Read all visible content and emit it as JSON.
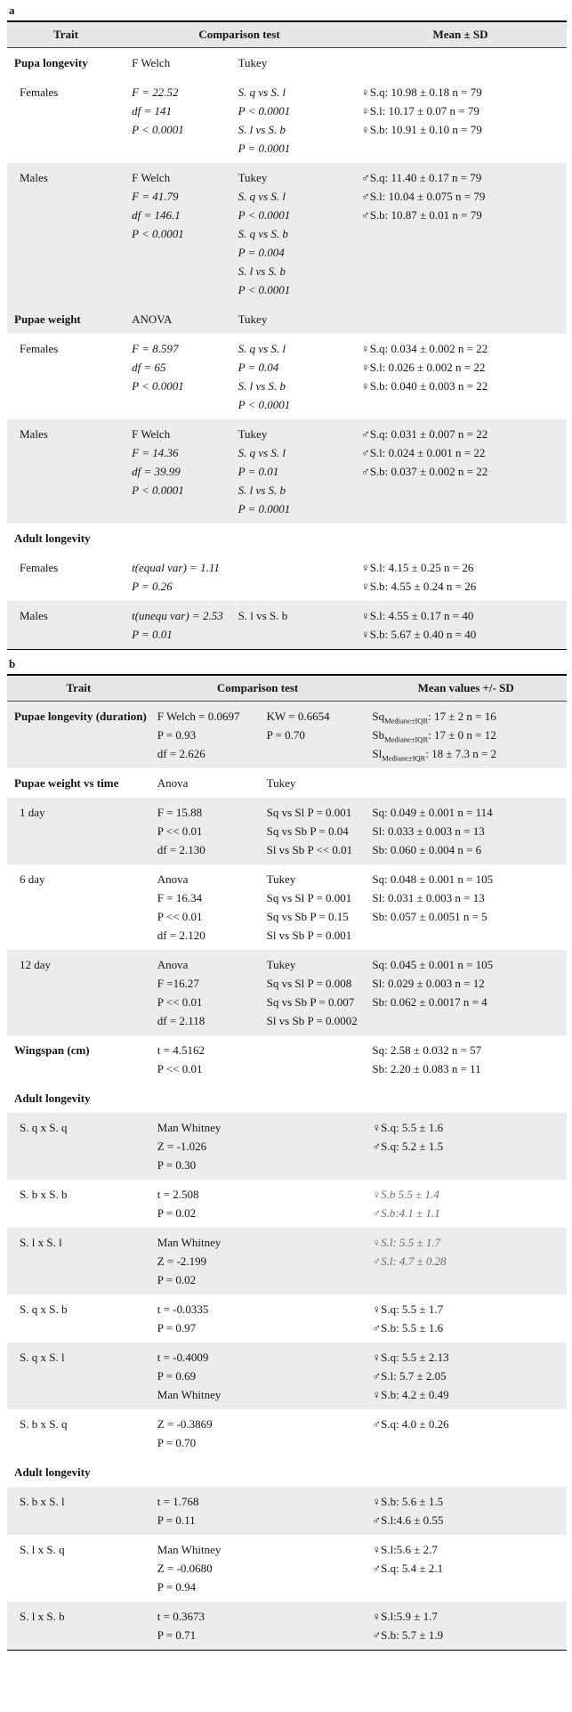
{
  "page": {
    "label_a": "a",
    "label_b": "b"
  },
  "table_a": {
    "headers": {
      "trait": "Trait",
      "comparison": "Comparison test",
      "mean": "Mean ± SD"
    },
    "groups": [
      {
        "trait": "Pupa longevity",
        "bold": true,
        "shaded": false,
        "test1": [
          {
            "t": "F Welch"
          }
        ],
        "test2": [
          {
            "t": "Tukey"
          }
        ],
        "mean": []
      },
      {
        "trait": "Females",
        "bold": false,
        "shaded": false,
        "test1": [
          {
            "t": "F = 22.52",
            "i": true
          },
          {
            "t": "df = 141",
            "i": true
          },
          {
            "t": "P < 0.0001",
            "i": true
          }
        ],
        "test2": [
          {
            "t": "S. q vs S. l",
            "i": true
          },
          {
            "t": "P < 0.0001",
            "i": true
          },
          {
            "t": "S. l vs S. b",
            "i": true
          },
          {
            "t": "P = 0.0001",
            "i": true
          }
        ],
        "mean": [
          {
            "t": "♀S.q: 10.98 ± 0.18 n = 79"
          },
          {
            "t": "♀S.l: 10.17 ± 0.07 n = 79"
          },
          {
            "t": "♀S.b: 10.91 ± 0.10 n = 79"
          }
        ]
      },
      {
        "trait": "Males",
        "bold": false,
        "shaded": true,
        "test1": [
          {
            "t": "F Welch"
          },
          {
            "t": "F = 41.79",
            "i": true
          },
          {
            "t": "df = 146.1",
            "i": true
          },
          {
            "t": "P < 0.0001",
            "i": true
          }
        ],
        "test2": [
          {
            "t": "Tukey"
          },
          {
            "t": "S. q vs S. l",
            "i": true
          },
          {
            "t": "P < 0.0001",
            "i": true
          },
          {
            "t": "S. q vs S. b",
            "i": true
          },
          {
            "t": "P = 0.004",
            "i": true
          },
          {
            "t": "S. l vs S. b",
            "i": true
          },
          {
            "t": "P < 0.0001",
            "i": true
          }
        ],
        "mean": [
          {
            "t": "♂S.q: 11.40 ± 0.17 n = 79"
          },
          {
            "t": "♂S.l: 10.04 ± 0.075 n = 79"
          },
          {
            "t": "♂S.b: 10.87 ± 0.01 n = 79"
          }
        ]
      },
      {
        "trait": "Pupae weight",
        "bold": true,
        "shaded": true,
        "test1": [
          {
            "t": "ANOVA"
          }
        ],
        "test2": [
          {
            "t": "Tukey"
          }
        ],
        "mean": []
      },
      {
        "trait": "Females",
        "bold": false,
        "shaded": false,
        "test1": [
          {
            "t": "F = 8.597",
            "i": true
          },
          {
            "t": "df = 65",
            "i": true
          },
          {
            "t": "P < 0.0001",
            "i": true
          }
        ],
        "test2": [
          {
            "t": "S. q vs S. l",
            "i": true
          },
          {
            "t": "P = 0.04",
            "i": true
          },
          {
            "t": "S. l vs S. b",
            "i": true
          },
          {
            "t": "P < 0.0001",
            "i": true
          }
        ],
        "mean": [
          {
            "t": "♀S.q: 0.034 ± 0.002 n = 22"
          },
          {
            "t": "♀S.l: 0.026 ± 0.002 n = 22"
          },
          {
            "t": "♀S.b: 0.040 ± 0.003 n = 22"
          }
        ]
      },
      {
        "trait": "Males",
        "bold": false,
        "shaded": true,
        "test1": [
          {
            "t": "F Welch"
          },
          {
            "t": "F = 14.36",
            "i": true
          },
          {
            "t": "df = 39.99",
            "i": true
          },
          {
            "t": "P < 0.0001",
            "i": true
          }
        ],
        "test2": [
          {
            "t": "Tukey"
          },
          {
            "t": "S. q vs S. l",
            "i": true
          },
          {
            "t": "P = 0.01",
            "i": true
          },
          {
            "t": "S. l vs S. b",
            "i": true
          },
          {
            "t": "P = 0.0001",
            "i": true
          }
        ],
        "mean": [
          {
            "t": "♂S.q: 0.031 ± 0.007 n = 22"
          },
          {
            "t": "♂S.l: 0.024 ± 0.001 n = 22"
          },
          {
            "t": "♂S.b: 0.037 ± 0.002 n = 22"
          }
        ]
      },
      {
        "trait": "Adult longevity",
        "bold": true,
        "shaded": false,
        "test1": [],
        "test2": [],
        "mean": []
      },
      {
        "trait": "Females",
        "bold": false,
        "shaded": false,
        "test1": [
          {
            "t": "t(equal var) = 1.11",
            "i": true
          },
          {
            "t": "P = 0.26",
            "i": true
          }
        ],
        "test2": [],
        "mean": [
          {
            "t": "♀S.l: 4.15 ± 0.25 n = 26"
          },
          {
            "t": "♀S.b: 4.55 ± 0.24 n = 26"
          }
        ]
      },
      {
        "trait": "Males",
        "bold": false,
        "shaded": true,
        "test1": [
          {
            "t": "t(unequ var) = 2.53",
            "i": true
          },
          {
            "t": "P = 0.01",
            "i": true
          }
        ],
        "test2": [
          {
            "t": "S. l vs S. b"
          }
        ],
        "mean": [
          {
            "t": "♀S.l: 4.55 ± 0.17 n = 40"
          },
          {
            "t": "♀S.b: 5.67 ± 0.40 n = 40"
          }
        ]
      }
    ]
  },
  "table_b": {
    "headers": {
      "trait": "Trait",
      "comparison": "Comparison test",
      "mean": "Mean values +/- SD"
    },
    "groups": [
      {
        "trait": "Pupae longevity (duration)",
        "bold": true,
        "shaded": true,
        "test1": [
          {
            "t": "F Welch = 0.0697"
          },
          {
            "t": "P = 0.93"
          },
          {
            "t": "df = 2.626"
          }
        ],
        "test2": [
          {
            "t": "KW = 0.6654"
          },
          {
            "t": "P = 0.70"
          }
        ],
        "mean": [
          {
            "t": "Sq",
            "sub": "Mediane±IQR",
            "post": ": 17 ± 2 n = 16"
          },
          {
            "t": "Sb",
            "sub": "Mediane±IQR",
            "post": ": 17 ± 0 n = 12"
          },
          {
            "t": "Sl",
            "sub": "Mediane±IQR",
            "post": ": 18 ± 7.3 n = 2"
          }
        ]
      },
      {
        "trait": "Pupae weight vs time",
        "bold": true,
        "shaded": false,
        "test1": [
          {
            "t": "Anova"
          }
        ],
        "test2": [
          {
            "t": "Tukey"
          }
        ],
        "mean": []
      },
      {
        "trait": "1 day",
        "bold": false,
        "shaded": true,
        "test1": [
          {
            "t": "F = 15.88"
          },
          {
            "t": "P << 0.01"
          },
          {
            "t": "df = 2.130"
          }
        ],
        "test2": [
          {
            "t": "Sq vs Sl P = 0.001"
          },
          {
            "t": "Sq vs Sb P = 0.04"
          },
          {
            "t": "Sl vs Sb P << 0.01"
          }
        ],
        "mean": [
          {
            "t": "Sq: 0.049 ± 0.001 n = 114"
          },
          {
            "t": "Sl: 0.033 ± 0.003 n = 13"
          },
          {
            "t": "Sb: 0.060 ± 0.004 n = 6"
          }
        ]
      },
      {
        "trait": "6 day",
        "bold": false,
        "shaded": false,
        "test1": [
          {
            "t": "Anova"
          },
          {
            "t": "F = 16.34"
          },
          {
            "t": "P << 0.01"
          },
          {
            "t": "df = 2.120"
          }
        ],
        "test2": [
          {
            "t": "Tukey"
          },
          {
            "t": "Sq vs Sl P = 0.001"
          },
          {
            "t": "Sq vs Sb P = 0.15"
          },
          {
            "t": "Sl vs Sb P = 0.001"
          }
        ],
        "mean": [
          {
            "t": "Sq: 0.048 ± 0.001  n = 105"
          },
          {
            "t": "Sl: 0.031 ± 0.003 n = 13"
          },
          {
            "t": "Sb: 0.057 ± 0.0051 n = 5"
          }
        ]
      },
      {
        "trait": "12 day",
        "bold": false,
        "shaded": true,
        "test1": [
          {
            "t": "Anova"
          },
          {
            "t": "F =16.27"
          },
          {
            "t": "P << 0.01"
          },
          {
            "t": "df = 2.118"
          }
        ],
        "test2": [
          {
            "t": "Tukey"
          },
          {
            "t": "Sq vs Sl P = 0.008"
          },
          {
            "t": "Sq vs Sb P = 0.007"
          },
          {
            "t": "Sl vs Sb P = 0.0002"
          }
        ],
        "mean": [
          {
            "t": "Sq: 0.045 ± 0.001 n = 105"
          },
          {
            "t": "Sl: 0.029 ± 0.003 n = 12"
          },
          {
            "t": "Sb: 0.062 ± 0.0017 n = 4"
          }
        ]
      },
      {
        "trait": "Wingspan (cm)",
        "bold": true,
        "shaded": false,
        "test1": [
          {
            "t": "t = 4.5162"
          },
          {
            "t": "P << 0.01"
          }
        ],
        "test2": [],
        "mean": [
          {
            "t": "Sq: 2.58 ± 0.032 n = 57"
          },
          {
            "t": "Sb: 2.20 ± 0.083 n = 11"
          }
        ]
      },
      {
        "trait": "Adult longevity",
        "bold": true,
        "shaded": false,
        "test1": [],
        "test2": [],
        "mean": []
      },
      {
        "trait": "S. q x S. q",
        "bold": false,
        "shaded": true,
        "test1": [
          {
            "t": "Man Whitney"
          },
          {
            "t": "Z = -1.026"
          },
          {
            "t": "P = 0.30"
          }
        ],
        "test2": [],
        "mean": [
          {
            "t": "♀S.q: 5.5 ± 1.6"
          },
          {
            "t": "♂S.q: 5.2 ± 1.5"
          }
        ]
      },
      {
        "trait": "S. b x S. b",
        "bold": false,
        "shaded": false,
        "test1": [
          {
            "t": "t = 2.508"
          },
          {
            "t": "P = 0.02"
          }
        ],
        "test2": [],
        "mean": [
          {
            "t": "♀S.b 5.5 ± 1.4",
            "i": true,
            "g": true
          },
          {
            "t": "♂S.b:4.1 ± 1.1",
            "i": true,
            "g": true
          }
        ]
      },
      {
        "trait": "S. l x S. l",
        "bold": false,
        "shaded": true,
        "test1": [
          {
            "t": "Man Whitney"
          },
          {
            "t": "Z = -2.199"
          },
          {
            "t": "P = 0.02"
          }
        ],
        "test2": [],
        "mean": [
          {
            "t": "♀S.l: 5.5 ± 1.7",
            "i": true,
            "g": true
          },
          {
            "t": "♂S.l: 4.7 ± 0.28",
            "i": true,
            "g": true
          }
        ]
      },
      {
        "trait": "S. q x S. b",
        "bold": false,
        "shaded": false,
        "test1": [
          {
            "t": "t = -0.0335"
          },
          {
            "t": "P = 0.97"
          }
        ],
        "test2": [],
        "mean": [
          {
            "t": "♀S.q: 5.5 ± 1.7"
          },
          {
            "t": "♂S.b: 5.5 ± 1.6"
          }
        ]
      },
      {
        "trait": "S. q x S. l",
        "bold": false,
        "shaded": true,
        "test1": [
          {
            "t": "t = -0.4009"
          },
          {
            "t": "P = 0.69"
          },
          {
            "t": "Man Whitney"
          }
        ],
        "test2": [],
        "mean": [
          {
            "t": "♀S.q: 5.5 ± 2.13"
          },
          {
            "t": "♂S.l: 5.7 ± 2.05"
          },
          {
            "t": "♀S.b: 4.2 ± 0.49"
          }
        ]
      },
      {
        "trait": "S. b x S. q",
        "bold": false,
        "shaded": false,
        "test1": [
          {
            "t": "Z = -0.3869"
          },
          {
            "t": "P = 0.70"
          }
        ],
        "test2": [],
        "mean": [
          {
            "t": "♂S.q: 4.0 ± 0.26"
          }
        ]
      },
      {
        "trait": "Adult longevity",
        "bold": true,
        "shaded": false,
        "test1": [],
        "test2": [],
        "mean": []
      },
      {
        "trait": "S. b x S. l",
        "bold": false,
        "shaded": true,
        "test1": [
          {
            "t": "t = 1.768"
          },
          {
            "t": "P = 0.11"
          }
        ],
        "test2": [],
        "mean": [
          {
            "t": "♀S.b: 5.6 ± 1.5"
          },
          {
            "t": "♂S.l:4.6 ± 0.55"
          }
        ]
      },
      {
        "trait": "S. l x S. q",
        "bold": false,
        "shaded": false,
        "test1": [
          {
            "t": "Man Whitney"
          },
          {
            "t": "Z = -0.0680"
          },
          {
            "t": "P = 0.94"
          }
        ],
        "test2": [],
        "mean": [
          {
            "t": "♀S.l:5.6 ± 2.7"
          },
          {
            "t": "♂S.q: 5.4 ± 2.1"
          }
        ]
      },
      {
        "trait": "S. l x S. b",
        "bold": false,
        "shaded": true,
        "test1": [
          {
            "t": "t = 0.3673"
          },
          {
            "t": "P = 0.71"
          }
        ],
        "test2": [],
        "mean": [
          {
            "t": "♀S.l:5.9 ± 1.7"
          },
          {
            "t": "♂S.b: 5.7 ± 1.9"
          }
        ]
      }
    ]
  }
}
